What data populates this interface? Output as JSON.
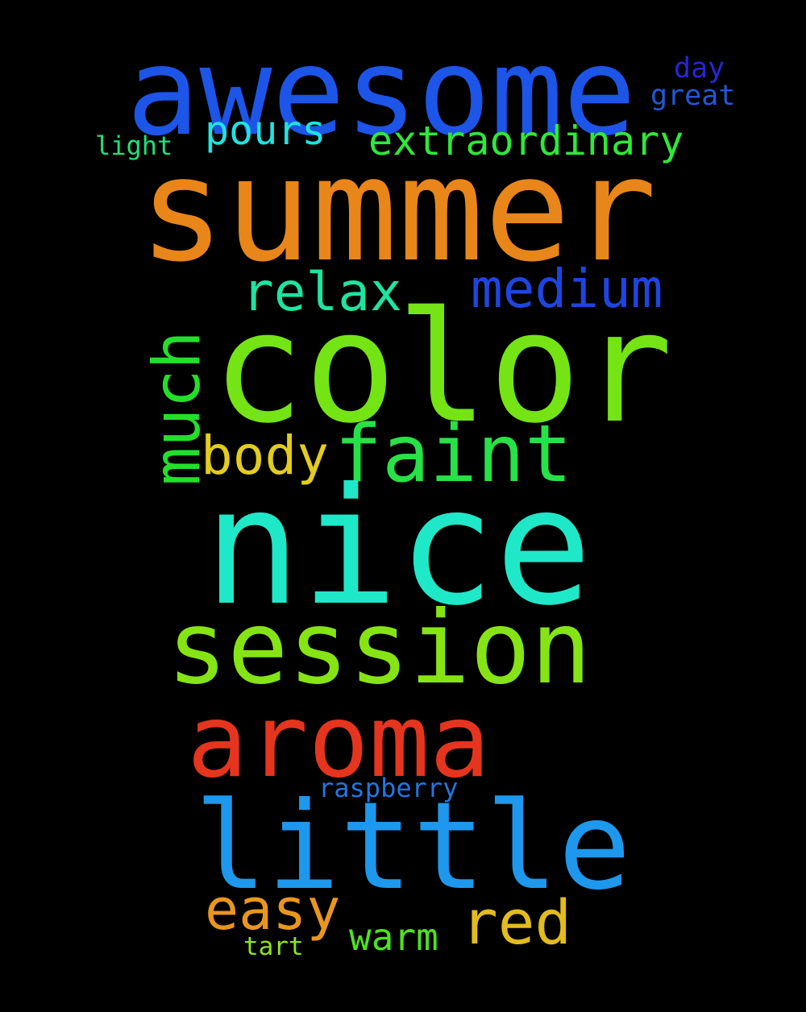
{
  "words": {
    "awesome": {
      "text": "awesome",
      "color": "#1c55e8"
    },
    "day": {
      "text": "day",
      "color": "#2a24d6"
    },
    "great": {
      "text": "great",
      "color": "#2158d8"
    },
    "pours": {
      "text": "pours",
      "color": "#1fe3e0"
    },
    "extraordinary": {
      "text": "extraordinary",
      "color": "#2ee83a"
    },
    "light": {
      "text": "light",
      "color": "#1fe07a"
    },
    "summer": {
      "text": "summer",
      "color": "#e8861a"
    },
    "relax": {
      "text": "relax",
      "color": "#1fe3a0"
    },
    "medium": {
      "text": "medium",
      "color": "#1f45e0"
    },
    "color": {
      "text": "color",
      "color": "#74e414"
    },
    "much": {
      "text": "much",
      "color": "#22e02a"
    },
    "body": {
      "text": "body",
      "color": "#e2cc1f"
    },
    "faint": {
      "text": "faint",
      "color": "#26e246"
    },
    "nice": {
      "text": "nice",
      "color": "#1fe8c8"
    },
    "session": {
      "text": "session",
      "color": "#86e414"
    },
    "aroma": {
      "text": "aroma",
      "color": "#e5351e"
    },
    "raspberry": {
      "text": "raspberry",
      "color": "#2276e0"
    },
    "little": {
      "text": "little",
      "color": "#1e98ec"
    },
    "easy": {
      "text": "easy",
      "color": "#e9961e"
    },
    "red": {
      "text": "red",
      "color": "#e2bb1f"
    },
    "warm": {
      "text": "warm",
      "color": "#4ee21f"
    },
    "tart": {
      "text": "tart",
      "color": "#8ee41f"
    }
  }
}
